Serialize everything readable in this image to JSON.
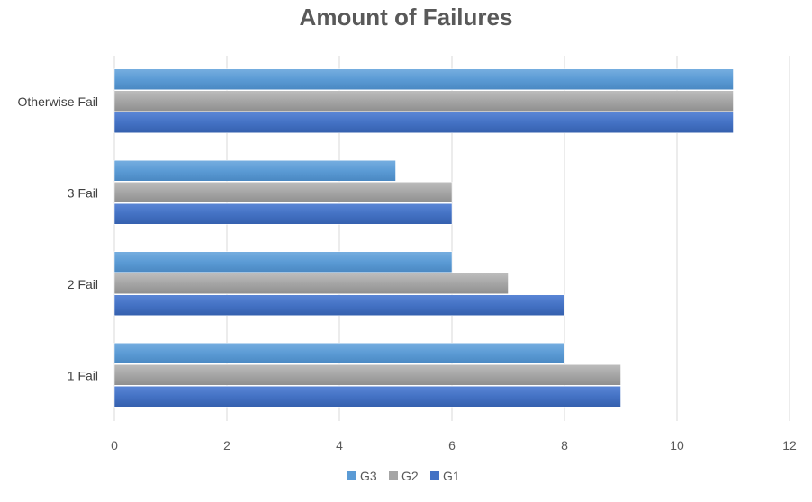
{
  "chart_data": {
    "type": "bar",
    "orientation": "horizontal",
    "title": "Amount of Failures",
    "categories": [
      "1 Fail",
      "2 Fail",
      "3 Fail",
      "Otherwise Fail"
    ],
    "series": [
      {
        "name": "G1",
        "values": [
          9,
          8,
          6,
          11
        ],
        "color": "#4472C4"
      },
      {
        "name": "G2",
        "values": [
          9,
          7,
          6,
          11
        ],
        "color": "#A5A5A5"
      },
      {
        "name": "G3",
        "values": [
          8,
          6,
          5,
          11
        ],
        "color": "#5B9BD5"
      }
    ],
    "xlim": [
      0,
      12
    ],
    "x_ticks": [
      0,
      2,
      4,
      6,
      8,
      10,
      12
    ],
    "grid": true,
    "legend_position": "bottom",
    "legend_order": [
      "G3",
      "G2",
      "G1"
    ]
  }
}
